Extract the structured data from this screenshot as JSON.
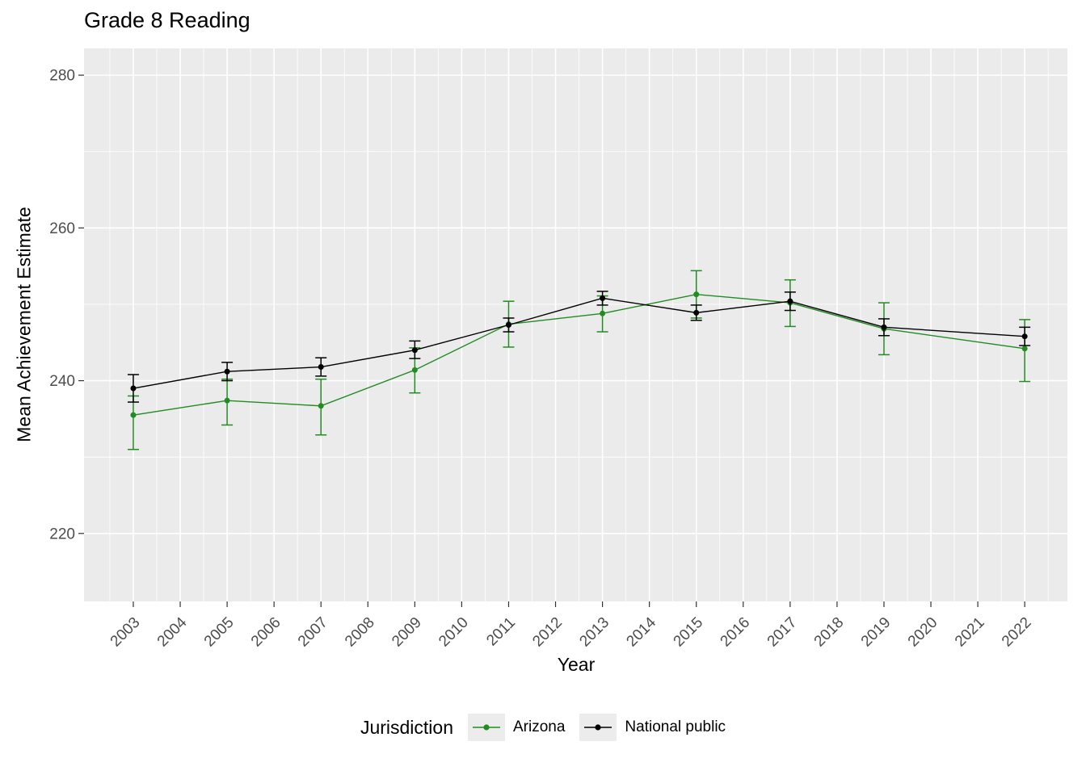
{
  "chart_data": {
    "type": "line",
    "title": "Grade 8 Reading",
    "xlabel": "Year",
    "ylabel": "Mean Achievement Estimate",
    "legend_title": "Jurisdiction",
    "x_ticks": [
      2003,
      2004,
      2005,
      2006,
      2007,
      2008,
      2009,
      2010,
      2011,
      2012,
      2013,
      2014,
      2015,
      2016,
      2017,
      2018,
      2019,
      2020,
      2021,
      2022
    ],
    "y_ticks": [
      220,
      240,
      260,
      280
    ],
    "x_domain": [
      2001.95,
      2022.91
    ],
    "y_domain": [
      211.1,
      283.5
    ],
    "grid": true,
    "legend_position": "bottom",
    "colors": {
      "panel_bg": "#EBEBEB",
      "grid": "#FFFFFF",
      "axis_text": "#4D4D4D",
      "tick_mark": "#333333",
      "legend_key_bg": "#ECECEC"
    },
    "series": [
      {
        "name": "Arizona",
        "color": "#228B22",
        "points": [
          {
            "x": 2003,
            "y": 235.5,
            "lo": 231.0,
            "hi": 238.0
          },
          {
            "x": 2005,
            "y": 237.4,
            "lo": 234.2,
            "hi": 240.2
          },
          {
            "x": 2007,
            "y": 236.7,
            "lo": 232.9,
            "hi": 240.2
          },
          {
            "x": 2009,
            "y": 241.4,
            "lo": 238.4,
            "hi": 244.3
          },
          {
            "x": 2011,
            "y": 247.4,
            "lo": 244.4,
            "hi": 250.4
          },
          {
            "x": 2013,
            "y": 248.8,
            "lo": 246.4,
            "hi": 251.1
          },
          {
            "x": 2015,
            "y": 251.3,
            "lo": 248.2,
            "hi": 254.4
          },
          {
            "x": 2017,
            "y": 250.2,
            "lo": 247.1,
            "hi": 253.2
          },
          {
            "x": 2019,
            "y": 246.8,
            "lo": 243.4,
            "hi": 250.2
          },
          {
            "x": 2022,
            "y": 244.2,
            "lo": 239.9,
            "hi": 248.0
          }
        ]
      },
      {
        "name": "National public",
        "color": "#000000",
        "points": [
          {
            "x": 2003,
            "y": 239.0,
            "lo": 237.2,
            "hi": 240.8
          },
          {
            "x": 2005,
            "y": 241.2,
            "lo": 240.0,
            "hi": 242.4
          },
          {
            "x": 2007,
            "y": 241.8,
            "lo": 240.6,
            "hi": 243.0
          },
          {
            "x": 2009,
            "y": 244.0,
            "lo": 242.9,
            "hi": 245.2
          },
          {
            "x": 2011,
            "y": 247.3,
            "lo": 246.4,
            "hi": 248.2
          },
          {
            "x": 2013,
            "y": 250.8,
            "lo": 249.9,
            "hi": 251.7
          },
          {
            "x": 2015,
            "y": 248.9,
            "lo": 247.9,
            "hi": 249.9
          },
          {
            "x": 2017,
            "y": 250.4,
            "lo": 249.2,
            "hi": 251.6
          },
          {
            "x": 2019,
            "y": 247.0,
            "lo": 245.9,
            "hi": 248.1
          },
          {
            "x": 2022,
            "y": 245.8,
            "lo": 244.6,
            "hi": 247.0
          }
        ]
      }
    ]
  }
}
